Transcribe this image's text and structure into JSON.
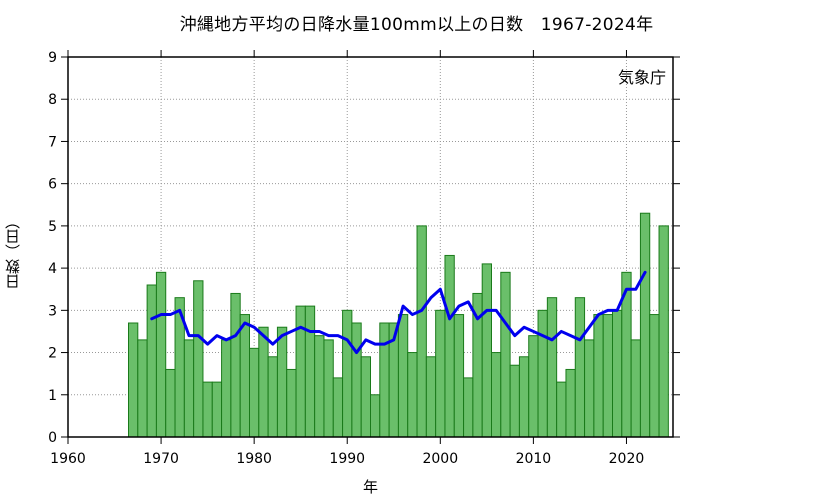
{
  "chart_data": {
    "type": "bar",
    "title": "沖縄地方平均の日降水量100mm以上の日数　1967-2024年",
    "credit": "気象庁",
    "xlabel": "年",
    "ylabel": "日数（日）",
    "xlim": [
      1960,
      2025
    ],
    "ylim": [
      0,
      9
    ],
    "x_ticks": [
      1960,
      1970,
      1980,
      1990,
      2000,
      2010,
      2020
    ],
    "y_ticks": [
      0,
      1,
      2,
      3,
      4,
      5,
      6,
      7,
      8,
      9
    ],
    "grid": true,
    "bar_color": "#6abf6a",
    "bar_edge_color": "#1a7a1a",
    "line_color": "#0000ee",
    "series": [
      {
        "type": "bar",
        "x": [
          1967,
          1968,
          1969,
          1970,
          1971,
          1972,
          1973,
          1974,
          1975,
          1976,
          1977,
          1978,
          1979,
          1980,
          1981,
          1982,
          1983,
          1984,
          1985,
          1986,
          1987,
          1988,
          1989,
          1990,
          1991,
          1992,
          1993,
          1994,
          1995,
          1996,
          1997,
          1998,
          1999,
          2000,
          2001,
          2002,
          2003,
          2004,
          2005,
          2006,
          2007,
          2008,
          2009,
          2010,
          2011,
          2012,
          2013,
          2014,
          2015,
          2016,
          2017,
          2018,
          2019,
          2020,
          2021,
          2022,
          2023,
          2024
        ],
        "values": [
          2.7,
          2.3,
          3.6,
          3.9,
          1.6,
          3.3,
          2.3,
          3.7,
          1.3,
          1.3,
          2.3,
          3.4,
          2.9,
          2.1,
          2.6,
          1.9,
          2.6,
          1.6,
          3.1,
          3.1,
          2.4,
          2.3,
          1.4,
          3.0,
          2.7,
          1.9,
          1.0,
          2.7,
          2.7,
          2.9,
          2.0,
          5.0,
          1.9,
          3.0,
          4.3,
          2.9,
          1.4,
          3.4,
          4.1,
          2.0,
          3.9,
          1.7,
          1.9,
          2.4,
          3.0,
          3.3,
          1.3,
          1.6,
          3.3,
          2.3,
          2.9,
          2.9,
          3.0,
          3.9,
          2.3,
          5.3,
          2.9,
          5.0
        ]
      },
      {
        "type": "line",
        "x": [
          1969,
          1970,
          1971,
          1972,
          1973,
          1974,
          1975,
          1976,
          1977,
          1978,
          1979,
          1980,
          1981,
          1982,
          1983,
          1984,
          1985,
          1986,
          1987,
          1988,
          1989,
          1990,
          1991,
          1992,
          1993,
          1994,
          1995,
          1996,
          1997,
          1998,
          1999,
          2000,
          2001,
          2002,
          2003,
          2004,
          2005,
          2006,
          2007,
          2008,
          2009,
          2010,
          2011,
          2012,
          2013,
          2014,
          2015,
          2016,
          2017,
          2018,
          2019,
          2020,
          2021,
          2022
        ],
        "values": [
          2.8,
          2.9,
          2.9,
          3.0,
          2.4,
          2.4,
          2.2,
          2.4,
          2.3,
          2.4,
          2.7,
          2.6,
          2.4,
          2.2,
          2.4,
          2.5,
          2.6,
          2.5,
          2.5,
          2.4,
          2.4,
          2.3,
          2.0,
          2.3,
          2.2,
          2.2,
          2.3,
          3.1,
          2.9,
          3.0,
          3.3,
          3.5,
          2.8,
          3.1,
          3.2,
          2.8,
          3.0,
          3.0,
          2.7,
          2.4,
          2.6,
          2.5,
          2.4,
          2.3,
          2.5,
          2.4,
          2.3,
          2.6,
          2.9,
          3.0,
          3.0,
          3.5,
          3.5,
          3.9
        ]
      }
    ]
  }
}
